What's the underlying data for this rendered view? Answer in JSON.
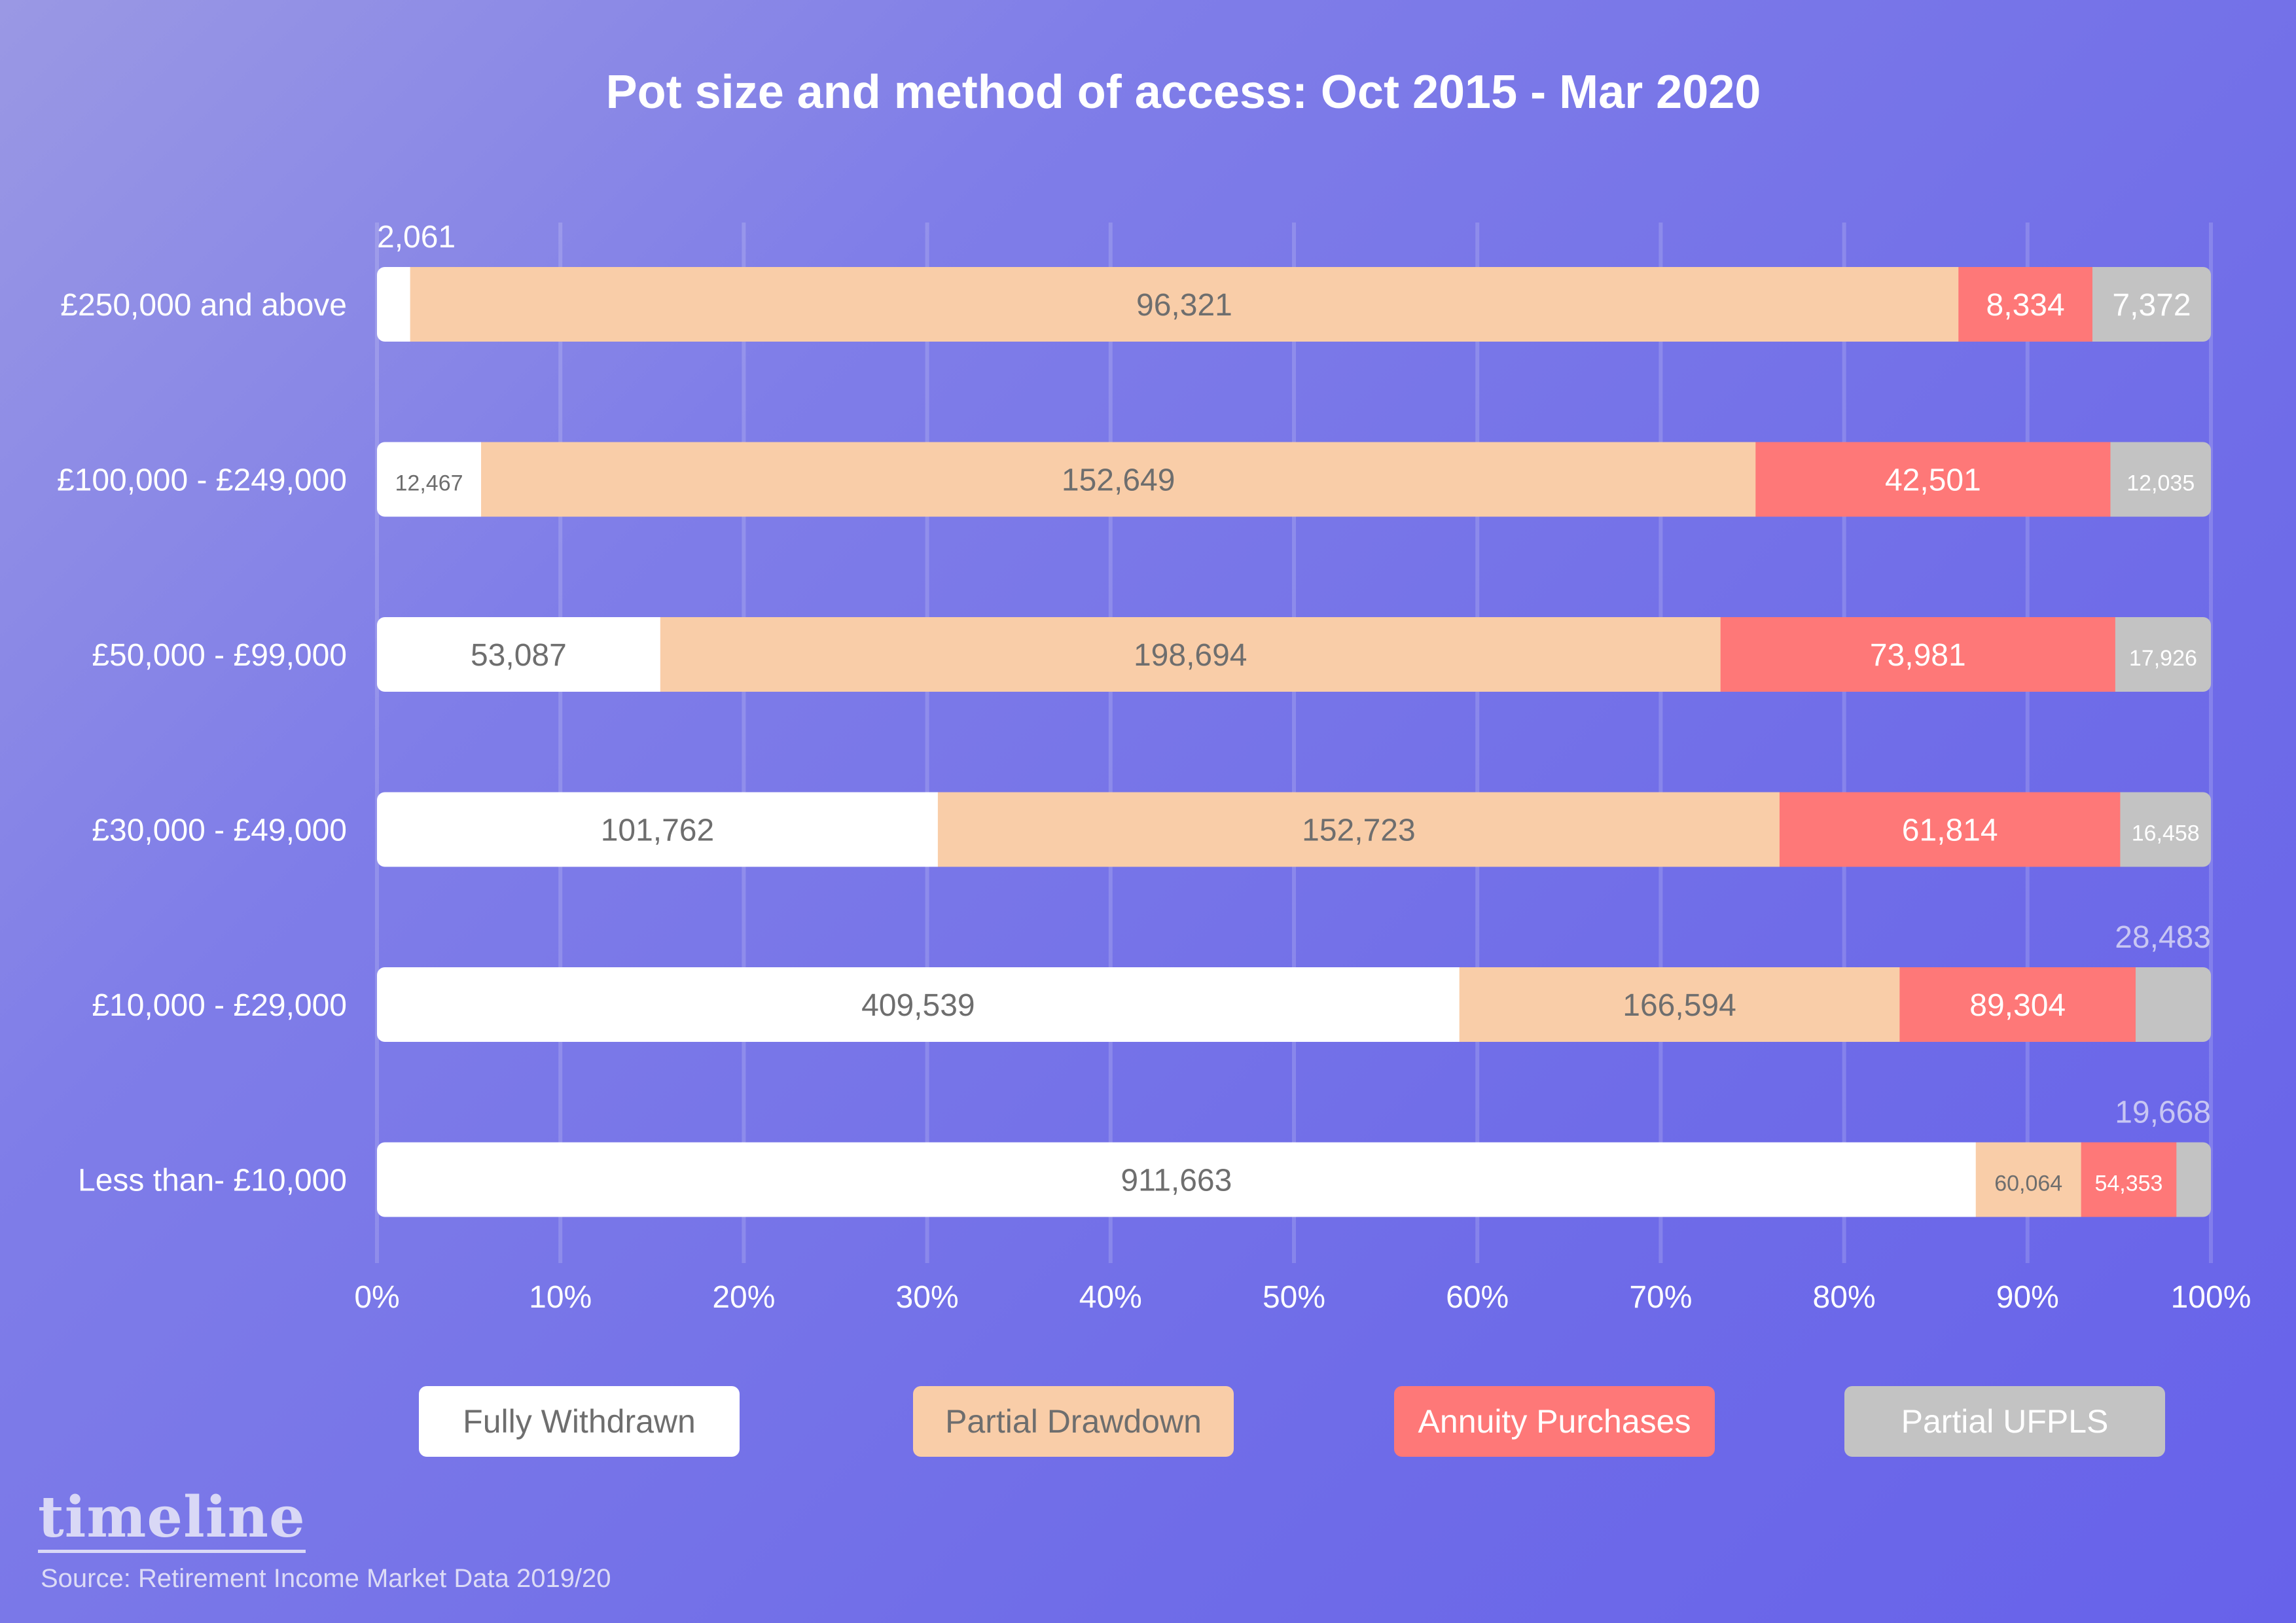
{
  "chart_data": {
    "type": "bar",
    "orientation": "horizontal",
    "stacked": "percent",
    "title": "Pot size and method of access: Oct 2015 - Mar 2020",
    "categories": [
      "£250,000 and above",
      "£100,000 - £249,000",
      "£50,000 - £99,000",
      "£30,000 - £49,000",
      "£10,000 - £29,000",
      "Less than- £10,000"
    ],
    "series": [
      {
        "name": "Fully Withdrawn",
        "color": "#ffffff",
        "text_color": "#6e6e6e",
        "values": [
          2061,
          12467,
          53087,
          101762,
          409539,
          911663
        ],
        "labels": [
          "2,061",
          "12,467",
          "53,087",
          "101,762",
          "409,539",
          "911,663"
        ]
      },
      {
        "name": "Partial Drawdown",
        "color": "#f9cda8",
        "text_color": "#6e6e6e",
        "values": [
          96321,
          152649,
          198694,
          152723,
          166594,
          60064
        ],
        "labels": [
          "96,321",
          "152,649",
          "198,694",
          "152,723",
          "166,594",
          "60,064"
        ]
      },
      {
        "name": "Annuity Purchases",
        "color": "#fe7878",
        "text_color": "#ffffff",
        "values": [
          8334,
          42501,
          73981,
          61814,
          89304,
          54353
        ],
        "labels": [
          "8,334",
          "42,501",
          "73,981",
          "61,814",
          "89,304",
          "54,353"
        ]
      },
      {
        "name": "Partial UFPLS",
        "color": "#c3c3c3",
        "text_color": "#ffffff",
        "values": [
          7372,
          12035,
          17926,
          16458,
          28483,
          19668
        ],
        "labels": [
          "7,372",
          "12,035",
          "17,926",
          "16,458",
          "28,483",
          "19,668"
        ]
      }
    ],
    "x_ticks": [
      "0%",
      "10%",
      "20%",
      "30%",
      "40%",
      "50%",
      "60%",
      "70%",
      "80%",
      "90%",
      "100%"
    ],
    "xlim": [
      0,
      100
    ],
    "grid": true,
    "legend_position": "bottom"
  },
  "footer": {
    "brand": "timeline",
    "source": "Source: Retirement Income Market Data 2019/20"
  }
}
